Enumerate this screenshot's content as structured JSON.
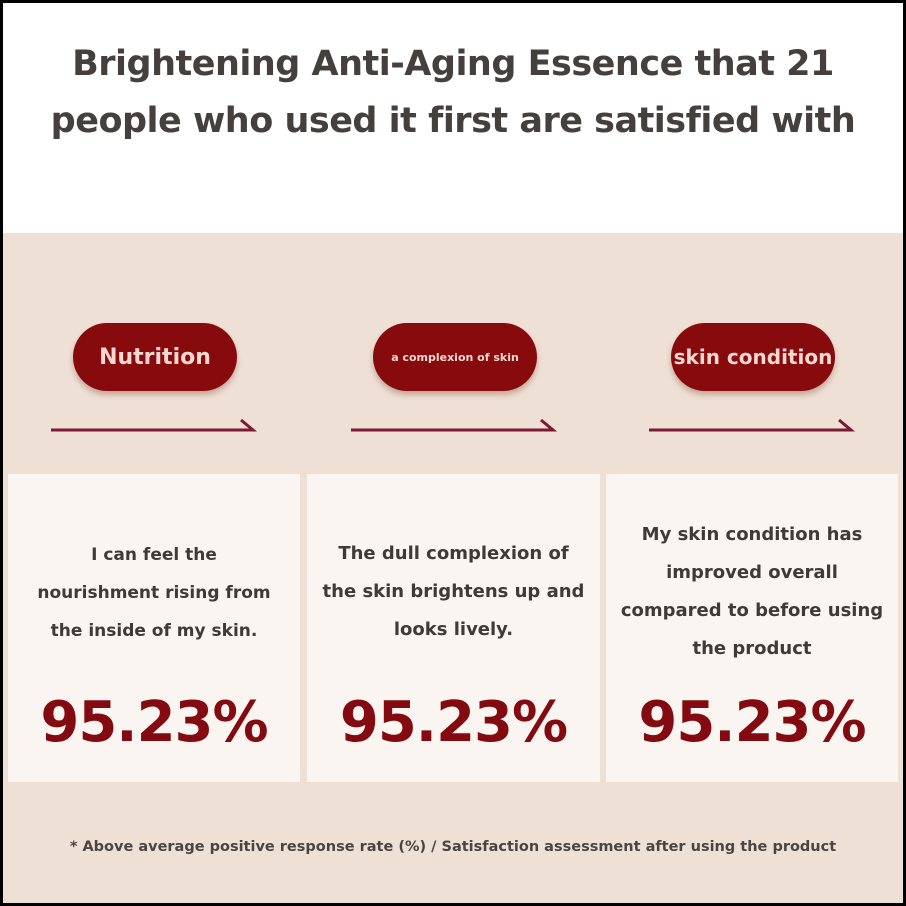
{
  "title": {
    "line1": "Brightening Anti-Aging Essence that 21",
    "line2": "people who used it first are satisfied with"
  },
  "colors": {
    "accent": "#870a0d",
    "background": "#efe0d5",
    "card": "#faf5f1"
  },
  "categories": [
    {
      "label": "Nutrition",
      "description": [
        "I can feel the",
        "nourishment rising from",
        "the inside of my skin."
      ],
      "percent": "95.23%"
    },
    {
      "label": "a complexion of skin",
      "description": [
        "The dull complexion of",
        "the skin brightens up and",
        "looks lively."
      ],
      "percent": "95.23%"
    },
    {
      "label": "skin condition",
      "description": [
        "My skin condition has",
        "improved overall",
        "compared to before using",
        "the product"
      ],
      "percent": "95.23%"
    }
  ],
  "footnote": "* Above average positive response rate (%) / Satisfaction assessment after using the product"
}
